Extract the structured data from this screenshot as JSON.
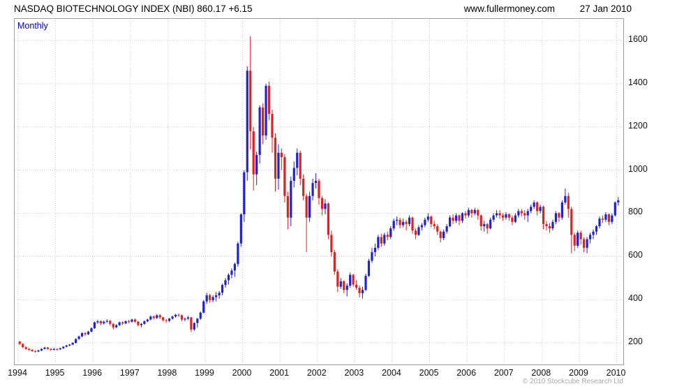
{
  "header": {
    "title": "NASDAQ BIOTECHNOLOGY INDEX (NBI) 860.17 +6.15",
    "website": "www.fullermoney.com",
    "date": "27 Jan 2010"
  },
  "chart": {
    "timeframe_label": "Monthly",
    "copyright": "© 2010 Stockcube Research Ltd"
  },
  "chart_data": {
    "type": "candlestick",
    "title": "NASDAQ BIOTECHNOLOGY INDEX (NBI)",
    "last_price": 860.17,
    "change": "+6.15",
    "interval": "monthly",
    "start": "1994-01",
    "x_tick_labels": [
      "1994",
      "1995",
      "1996",
      "1997",
      "1998",
      "1999",
      "2000",
      "2001",
      "2002",
      "2003",
      "2004",
      "2005",
      "2006",
      "2007",
      "2008",
      "2009",
      "2010"
    ],
    "y_ticks": [
      200,
      400,
      600,
      800,
      1000,
      1200,
      1400,
      1600
    ],
    "ylim": [
      100,
      1700
    ],
    "grid": true,
    "colors": {
      "up": "#2222cc",
      "down": "#dd2222",
      "grid": "#c9c9c9"
    },
    "candles": [
      [
        205,
        210,
        190,
        195
      ],
      [
        195,
        198,
        175,
        180
      ],
      [
        180,
        184,
        168,
        172
      ],
      [
        172,
        176,
        163,
        168
      ],
      [
        168,
        171,
        158,
        162
      ],
      [
        162,
        167,
        155,
        160
      ],
      [
        160,
        169,
        157,
        165
      ],
      [
        165,
        175,
        162,
        172
      ],
      [
        172,
        182,
        169,
        178
      ],
      [
        178,
        181,
        168,
        172
      ],
      [
        172,
        175,
        163,
        168
      ],
      [
        168,
        176,
        165,
        172
      ],
      [
        172,
        174,
        164,
        170
      ],
      [
        170,
        178,
        167,
        175
      ],
      [
        175,
        185,
        172,
        182
      ],
      [
        182,
        191,
        179,
        188
      ],
      [
        188,
        195,
        184,
        192
      ],
      [
        192,
        203,
        189,
        200
      ],
      [
        200,
        221,
        197,
        218
      ],
      [
        218,
        234,
        214,
        230
      ],
      [
        230,
        249,
        226,
        245
      ],
      [
        245,
        250,
        232,
        240
      ],
      [
        240,
        256,
        236,
        252
      ],
      [
        252,
        272,
        248,
        268
      ],
      [
        268,
        299,
        264,
        295
      ],
      [
        295,
        306,
        288,
        300
      ],
      [
        300,
        305,
        282,
        290
      ],
      [
        290,
        303,
        285,
        298
      ],
      [
        298,
        309,
        292,
        302
      ],
      [
        302,
        306,
        280,
        288
      ],
      [
        288,
        292,
        262,
        272
      ],
      [
        272,
        287,
        268,
        282
      ],
      [
        282,
        299,
        278,
        295
      ],
      [
        295,
        300,
        282,
        290
      ],
      [
        290,
        304,
        286,
        300
      ],
      [
        300,
        306,
        290,
        298
      ],
      [
        298,
        312,
        294,
        308
      ],
      [
        308,
        312,
        292,
        298
      ],
      [
        298,
        302,
        276,
        282
      ],
      [
        282,
        292,
        272,
        288
      ],
      [
        288,
        304,
        284,
        300
      ],
      [
        300,
        312,
        295,
        308
      ],
      [
        308,
        326,
        304,
        322
      ],
      [
        322,
        327,
        308,
        315
      ],
      [
        315,
        332,
        311,
        328
      ],
      [
        328,
        333,
        310,
        318
      ],
      [
        318,
        322,
        298,
        305
      ],
      [
        305,
        310,
        292,
        302
      ],
      [
        302,
        316,
        296,
        312
      ],
      [
        312,
        326,
        308,
        322
      ],
      [
        322,
        334,
        317,
        330
      ],
      [
        330,
        336,
        320,
        328
      ],
      [
        328,
        331,
        300,
        308
      ],
      [
        308,
        317,
        300,
        312
      ],
      [
        312,
        325,
        305,
        318
      ],
      [
        318,
        320,
        250,
        262
      ],
      [
        262,
        296,
        255,
        292
      ],
      [
        292,
        316,
        270,
        312
      ],
      [
        312,
        345,
        306,
        340
      ],
      [
        340,
        398,
        336,
        392
      ],
      [
        392,
        432,
        380,
        420
      ],
      [
        420,
        428,
        386,
        398
      ],
      [
        398,
        420,
        388,
        412
      ],
      [
        412,
        436,
        392,
        420
      ],
      [
        420,
        440,
        404,
        432
      ],
      [
        432,
        474,
        420,
        468
      ],
      [
        468,
        500,
        455,
        490
      ],
      [
        490,
        522,
        470,
        515
      ],
      [
        515,
        545,
        498,
        535
      ],
      [
        535,
        572,
        505,
        565
      ],
      [
        565,
        668,
        552,
        660
      ],
      [
        660,
        800,
        645,
        795
      ],
      [
        795,
        1000,
        760,
        990
      ],
      [
        990,
        1480,
        950,
        1460
      ],
      [
        1460,
        1620,
        1095,
        1180
      ],
      [
        1180,
        1200,
        905,
        980
      ],
      [
        980,
        1085,
        930,
        1070
      ],
      [
        1070,
        1300,
        1030,
        1290
      ],
      [
        1290,
        1310,
        1120,
        1160
      ],
      [
        1160,
        1400,
        1140,
        1390
      ],
      [
        1390,
        1410,
        1230,
        1260
      ],
      [
        1260,
        1280,
        1080,
        1150
      ],
      [
        1150,
        1170,
        900,
        960
      ],
      [
        960,
        1120,
        910,
        1080
      ],
      [
        1080,
        1100,
        1000,
        1060
      ],
      [
        1060,
        1075,
        850,
        880
      ],
      [
        880,
        900,
        725,
        780
      ],
      [
        780,
        970,
        740,
        950
      ],
      [
        950,
        1040,
        920,
        1010
      ],
      [
        1010,
        1100,
        975,
        1080
      ],
      [
        1080,
        1090,
        930,
        960
      ],
      [
        960,
        980,
        860,
        880
      ],
      [
        880,
        890,
        620,
        780
      ],
      [
        780,
        900,
        760,
        880
      ],
      [
        880,
        960,
        860,
        940
      ],
      [
        940,
        985,
        915,
        950
      ],
      [
        950,
        960,
        840,
        870
      ],
      [
        870,
        880,
        790,
        820
      ],
      [
        820,
        865,
        795,
        845
      ],
      [
        845,
        850,
        680,
        700
      ],
      [
        700,
        720,
        600,
        620
      ],
      [
        620,
        630,
        515,
        530
      ],
      [
        530,
        540,
        435,
        460
      ],
      [
        460,
        500,
        450,
        485
      ],
      [
        485,
        490,
        430,
        445
      ],
      [
        445,
        475,
        415,
        465
      ],
      [
        465,
        525,
        455,
        515
      ],
      [
        515,
        520,
        460,
        470
      ],
      [
        470,
        490,
        445,
        455
      ],
      [
        455,
        465,
        410,
        430
      ],
      [
        430,
        460,
        405,
        445
      ],
      [
        445,
        520,
        440,
        510
      ],
      [
        510,
        590,
        505,
        580
      ],
      [
        580,
        640,
        570,
        620
      ],
      [
        620,
        660,
        600,
        640
      ],
      [
        640,
        700,
        630,
        690
      ],
      [
        690,
        705,
        645,
        660
      ],
      [
        660,
        710,
        650,
        700
      ],
      [
        700,
        715,
        675,
        690
      ],
      [
        690,
        740,
        680,
        730
      ],
      [
        730,
        775,
        720,
        765
      ],
      [
        765,
        785,
        745,
        770
      ],
      [
        770,
        780,
        730,
        745
      ],
      [
        745,
        775,
        735,
        760
      ],
      [
        760,
        770,
        720,
        750
      ],
      [
        750,
        790,
        740,
        780
      ],
      [
        780,
        785,
        705,
        720
      ],
      [
        720,
        730,
        680,
        700
      ],
      [
        700,
        745,
        695,
        735
      ],
      [
        735,
        755,
        720,
        745
      ],
      [
        745,
        780,
        735,
        770
      ],
      [
        770,
        800,
        760,
        785
      ],
      [
        785,
        790,
        735,
        750
      ],
      [
        750,
        765,
        725,
        740
      ],
      [
        740,
        750,
        700,
        715
      ],
      [
        715,
        720,
        665,
        685
      ],
      [
        685,
        725,
        675,
        715
      ],
      [
        715,
        750,
        705,
        740
      ],
      [
        740,
        790,
        735,
        780
      ],
      [
        780,
        795,
        750,
        765
      ],
      [
        765,
        800,
        755,
        790
      ],
      [
        790,
        795,
        745,
        765
      ],
      [
        765,
        805,
        755,
        800
      ],
      [
        800,
        810,
        775,
        790
      ],
      [
        790,
        825,
        780,
        815
      ],
      [
        815,
        820,
        780,
        800
      ],
      [
        800,
        825,
        790,
        815
      ],
      [
        815,
        820,
        770,
        790
      ],
      [
        790,
        795,
        720,
        740
      ],
      [
        740,
        765,
        715,
        750
      ],
      [
        750,
        755,
        705,
        730
      ],
      [
        730,
        780,
        725,
        770
      ],
      [
        770,
        800,
        760,
        790
      ],
      [
        790,
        815,
        780,
        800
      ],
      [
        800,
        815,
        775,
        790
      ],
      [
        790,
        800,
        765,
        780
      ],
      [
        780,
        805,
        770,
        795
      ],
      [
        795,
        800,
        765,
        780
      ],
      [
        780,
        790,
        745,
        760
      ],
      [
        760,
        800,
        755,
        790
      ],
      [
        790,
        820,
        780,
        810
      ],
      [
        810,
        820,
        785,
        800
      ],
      [
        800,
        815,
        770,
        790
      ],
      [
        790,
        820,
        760,
        810
      ],
      [
        810,
        840,
        800,
        830
      ],
      [
        830,
        860,
        820,
        850
      ],
      [
        850,
        855,
        790,
        810
      ],
      [
        810,
        840,
        800,
        830
      ],
      [
        830,
        835,
        725,
        750
      ],
      [
        750,
        765,
        720,
        740
      ],
      [
        740,
        755,
        710,
        730
      ],
      [
        730,
        770,
        720,
        760
      ],
      [
        760,
        810,
        750,
        800
      ],
      [
        800,
        805,
        760,
        780
      ],
      [
        780,
        860,
        770,
        850
      ],
      [
        850,
        915,
        840,
        880
      ],
      [
        880,
        895,
        780,
        820
      ],
      [
        820,
        830,
        615,
        700
      ],
      [
        700,
        710,
        625,
        650
      ],
      [
        650,
        720,
        640,
        710
      ],
      [
        710,
        720,
        655,
        680
      ],
      [
        680,
        690,
        620,
        640
      ],
      [
        640,
        690,
        615,
        680
      ],
      [
        680,
        710,
        660,
        700
      ],
      [
        700,
        725,
        680,
        715
      ],
      [
        715,
        745,
        700,
        740
      ],
      [
        740,
        785,
        730,
        775
      ],
      [
        775,
        790,
        755,
        770
      ],
      [
        770,
        805,
        760,
        795
      ],
      [
        795,
        800,
        745,
        760
      ],
      [
        760,
        800,
        750,
        790
      ],
      [
        790,
        855,
        785,
        850
      ],
      [
        850,
        875,
        835,
        860
      ]
    ]
  }
}
